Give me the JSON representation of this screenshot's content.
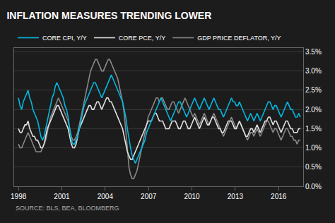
{
  "chart_data": {
    "type": "line",
    "title": "INFLATION MEASURES TRENDING LOWER",
    "annotations": [
      "SOURCE: BLS, BEA, BLOOMBERG"
    ],
    "x": [
      1998,
      1998.111,
      1998.222,
      1998.332,
      1998.443,
      1998.554,
      1998.665,
      1998.776,
      1998.886,
      1998.997,
      1999.108,
      1999.219,
      1999.33,
      1999.44,
      1999.551,
      1999.662,
      1999.773,
      1999.884,
      1999.994,
      2000.105,
      2000.216,
      2000.327,
      2000.438,
      2000.548,
      2000.659,
      2000.77,
      2000.881,
      2000.991,
      2001.102,
      2001.213,
      2001.324,
      2001.435,
      2001.545,
      2001.656,
      2001.767,
      2001.878,
      2001.989,
      2002.099,
      2002.21,
      2002.321,
      2002.432,
      2002.543,
      2002.653,
      2002.764,
      2002.875,
      2002.986,
      2003.097,
      2003.207,
      2003.318,
      2003.429,
      2003.54,
      2003.651,
      2003.761,
      2003.872,
      2003.983,
      2004.094,
      2004.205,
      2004.315,
      2004.426,
      2004.537,
      2004.648,
      2004.759,
      2004.869,
      2004.98,
      2005.091,
      2005.202,
      2005.313,
      2005.423,
      2005.534,
      2005.645,
      2005.756,
      2005.866,
      2005.977,
      2006.088,
      2006.199,
      2006.31,
      2006.42,
      2006.531,
      2006.642,
      2006.753,
      2006.864,
      2006.974,
      2007.085,
      2007.196,
      2007.307,
      2007.418,
      2007.528,
      2007.639,
      2007.75,
      2007.861,
      2007.972,
      2008.082,
      2008.193,
      2008.304,
      2008.415,
      2008.526,
      2008.636,
      2008.747,
      2008.858,
      2008.969,
      2009.08,
      2009.19,
      2009.301,
      2009.412,
      2009.523,
      2009.634,
      2009.744,
      2009.855,
      2009.966,
      2010.077,
      2010.188,
      2010.298,
      2010.409,
      2010.52,
      2010.631,
      2010.741,
      2010.852,
      2010.963,
      2011.074,
      2011.185,
      2011.295,
      2011.406,
      2011.517,
      2011.628,
      2011.739,
      2011.849,
      2011.96,
      2012.071,
      2012.182,
      2012.293,
      2012.403,
      2012.514,
      2012.625,
      2012.736,
      2012.847,
      2012.957,
      2013.068,
      2013.179,
      2013.29,
      2013.401,
      2013.511,
      2013.622,
      2013.733,
      2013.844,
      2013.955,
      2014.065,
      2014.176,
      2014.287,
      2014.398,
      2014.509,
      2014.619,
      2014.73,
      2014.841,
      2014.952,
      2015.063,
      2015.173,
      2015.284,
      2015.395,
      2015.506,
      2015.616,
      2015.727,
      2015.838,
      2015.949,
      2016.06,
      2016.17,
      2016.281,
      2016.392,
      2016.503,
      2016.614,
      2016.724,
      2016.835,
      2016.946,
      2017.057,
      2017.168,
      2017.278,
      2017.389,
      2017.5
    ],
    "series": [
      {
        "name": "CORE CPI, Y/Y",
        "color": "#00b8e0",
        "values": [
          2.3,
          2.1,
          2.0,
          2.2,
          2.3,
          2.4,
          2.5,
          2.3,
          2.2,
          2.0,
          1.9,
          1.8,
          1.7,
          1.5,
          1.3,
          1.2,
          1.3,
          1.5,
          1.7,
          1.9,
          2.1,
          2.3,
          2.4,
          2.6,
          2.7,
          2.6,
          2.5,
          2.4,
          2.3,
          2.1,
          2.0,
          1.8,
          1.5,
          1.2,
          1.1,
          1.1,
          1.2,
          1.3,
          1.5,
          1.7,
          1.9,
          2.1,
          2.2,
          2.3,
          2.4,
          2.5,
          2.6,
          2.7,
          2.7,
          2.6,
          2.5,
          2.4,
          2.3,
          2.4,
          2.5,
          2.6,
          2.7,
          2.8,
          2.9,
          2.8,
          2.7,
          2.6,
          2.5,
          2.4,
          2.3,
          2.2,
          2.0,
          1.8,
          1.5,
          1.2,
          1.0,
          0.8,
          0.7,
          0.6,
          0.7,
          0.8,
          0.9,
          1.0,
          1.1,
          1.2,
          1.4,
          1.5,
          1.6,
          1.7,
          1.8,
          1.9,
          2.0,
          2.1,
          2.2,
          2.3,
          2.2,
          2.1,
          2.0,
          1.9,
          1.8,
          1.7,
          1.8,
          1.9,
          2.0,
          2.1,
          2.2,
          2.2,
          2.1,
          2.0,
          1.9,
          1.8,
          1.9,
          2.0,
          2.1,
          2.2,
          2.3,
          2.2,
          2.1,
          2.0,
          2.1,
          2.2,
          2.3,
          2.2,
          2.1,
          2.0,
          2.1,
          2.2,
          2.3,
          2.2,
          2.1,
          2.0,
          2.0,
          1.9,
          1.8,
          1.9,
          2.0,
          2.1,
          2.2,
          2.3,
          2.2,
          2.2,
          2.1,
          2.1,
          2.2,
          2.1,
          2.0,
          1.9,
          1.8,
          1.7,
          1.8,
          1.9,
          1.8,
          1.7,
          1.8,
          1.9,
          1.8,
          1.7,
          1.8,
          1.9,
          2.0,
          2.1,
          2.2,
          2.2,
          2.1,
          2.0,
          2.1,
          2.1,
          2.0,
          1.9,
          1.8,
          1.9,
          2.0,
          2.1,
          2.2,
          2.1,
          2.0,
          2.0,
          1.9,
          1.8,
          1.8,
          1.9,
          1.8
        ]
      },
      {
        "name": "CORE PCE, Y/Y",
        "color": "#e0e0e0",
        "values": [
          1.5,
          1.4,
          1.4,
          1.5,
          1.6,
          1.6,
          1.7,
          1.5,
          1.4,
          1.3,
          1.3,
          1.2,
          1.2,
          1.1,
          1.0,
          1.0,
          1.1,
          1.3,
          1.5,
          1.6,
          1.7,
          1.8,
          1.9,
          2.0,
          2.1,
          2.1,
          2.0,
          1.9,
          1.8,
          1.7,
          1.6,
          1.5,
          1.3,
          1.1,
          1.0,
          1.0,
          1.1,
          1.3,
          1.5,
          1.6,
          1.7,
          1.8,
          1.9,
          2.0,
          2.1,
          2.1,
          2.0,
          2.0,
          2.1,
          2.2,
          2.2,
          2.1,
          2.0,
          2.1,
          2.2,
          2.3,
          2.3,
          2.2,
          2.2,
          2.1,
          2.0,
          1.9,
          1.8,
          1.7,
          1.6,
          1.5,
          1.3,
          1.1,
          0.9,
          0.8,
          0.7,
          0.7,
          0.8,
          0.9,
          1.0,
          1.1,
          1.2,
          1.3,
          1.4,
          1.5,
          1.6,
          1.7,
          1.7,
          1.7,
          1.8,
          1.9,
          1.9,
          1.8,
          1.7,
          1.7,
          1.7,
          1.6,
          1.5,
          1.5,
          1.5,
          1.6,
          1.7,
          1.7,
          1.7,
          1.6,
          1.5,
          1.5,
          1.6,
          1.7,
          1.7,
          1.6,
          1.5,
          1.5,
          1.6,
          1.7,
          1.8,
          1.7,
          1.6,
          1.5,
          1.6,
          1.7,
          1.8,
          1.7,
          1.6,
          1.6,
          1.7,
          1.8,
          1.8,
          1.7,
          1.6,
          1.5,
          1.5,
          1.4,
          1.4,
          1.5,
          1.6,
          1.7,
          1.7,
          1.7,
          1.6,
          1.5,
          1.5,
          1.6,
          1.7,
          1.6,
          1.5,
          1.4,
          1.3,
          1.3,
          1.4,
          1.5,
          1.5,
          1.4,
          1.5,
          1.6,
          1.5,
          1.4,
          1.5,
          1.6,
          1.7,
          1.7,
          1.8,
          1.8,
          1.7,
          1.6,
          1.7,
          1.7,
          1.6,
          1.5,
          1.4,
          1.5,
          1.6,
          1.7,
          1.7,
          1.6,
          1.5,
          1.5,
          1.4,
          1.4,
          1.4,
          1.5,
          1.5
        ]
      },
      {
        "name": "GDP PRICE DEFLATOR, Y/Y",
        "color": "#888888",
        "values": [
          1.1,
          1.0,
          1.0,
          1.1,
          1.2,
          1.3,
          1.4,
          1.3,
          1.2,
          1.1,
          1.0,
          0.9,
          0.9,
          0.9,
          0.9,
          1.0,
          1.1,
          1.2,
          1.4,
          1.6,
          1.8,
          1.9,
          2.0,
          2.1,
          2.2,
          2.3,
          2.2,
          2.1,
          2.0,
          1.9,
          1.8,
          1.7,
          1.5,
          1.3,
          1.2,
          1.2,
          1.3,
          1.4,
          1.6,
          1.8,
          2.0,
          2.2,
          2.4,
          2.6,
          2.8,
          3.0,
          3.1,
          3.2,
          3.3,
          3.3,
          3.2,
          3.1,
          3.0,
          3.0,
          3.1,
          3.2,
          3.3,
          3.3,
          3.2,
          3.1,
          3.0,
          2.9,
          2.8,
          2.6,
          2.4,
          2.2,
          1.9,
          1.5,
          1.0,
          0.5,
          0.3,
          0.2,
          0.2,
          0.3,
          0.4,
          0.6,
          0.8,
          1.0,
          1.2,
          1.4,
          1.6,
          1.8,
          1.9,
          2.0,
          2.1,
          2.2,
          2.3,
          2.3,
          2.2,
          2.3,
          2.3,
          2.2,
          2.1,
          2.0,
          2.0,
          2.1,
          2.2,
          2.2,
          2.1,
          2.0,
          1.9,
          2.0,
          2.1,
          2.2,
          2.3,
          2.2,
          2.1,
          2.0,
          1.9,
          1.8,
          1.9,
          1.8,
          1.7,
          1.6,
          1.7,
          1.8,
          1.9,
          1.8,
          1.7,
          1.6,
          1.7,
          1.8,
          1.9,
          1.8,
          1.7,
          1.6,
          1.5,
          1.4,
          1.3,
          1.4,
          1.5,
          1.6,
          1.7,
          1.8,
          1.7,
          1.6,
          1.5,
          1.6,
          1.7,
          1.6,
          1.5,
          1.4,
          1.3,
          1.2,
          1.3,
          1.4,
          1.4,
          1.3,
          1.4,
          1.5,
          1.4,
          1.3,
          1.4,
          1.5,
          1.6,
          1.7,
          1.7,
          1.6,
          1.5,
          1.4,
          1.5,
          1.5,
          1.4,
          1.3,
          1.2,
          1.3,
          1.4,
          1.5,
          1.5,
          1.4,
          1.3,
          1.3,
          1.2,
          1.2,
          1.1,
          1.2,
          1.2
        ]
      }
    ],
    "xlim": [
      1997.7,
      2017.7
    ],
    "xticks": [
      1998,
      2001,
      2004,
      2007,
      2010,
      2013,
      2016
    ],
    "ylim": [
      0.0,
      3.6
    ],
    "yticks": [
      {
        "value": 0.0,
        "label": "0.0%"
      },
      {
        "value": 0.5,
        "label": "0.5%"
      },
      {
        "value": 1.0,
        "label": "1.0%"
      },
      {
        "value": 1.5,
        "label": "1.5%"
      },
      {
        "value": 2.0,
        "label": "2.0%"
      },
      {
        "value": 2.5,
        "label": "2.5%"
      },
      {
        "value": 3.0,
        "label": "3.0%"
      },
      {
        "value": 3.5,
        "label": "3.5%"
      }
    ],
    "grid": true,
    "legend": "upper left"
  }
}
